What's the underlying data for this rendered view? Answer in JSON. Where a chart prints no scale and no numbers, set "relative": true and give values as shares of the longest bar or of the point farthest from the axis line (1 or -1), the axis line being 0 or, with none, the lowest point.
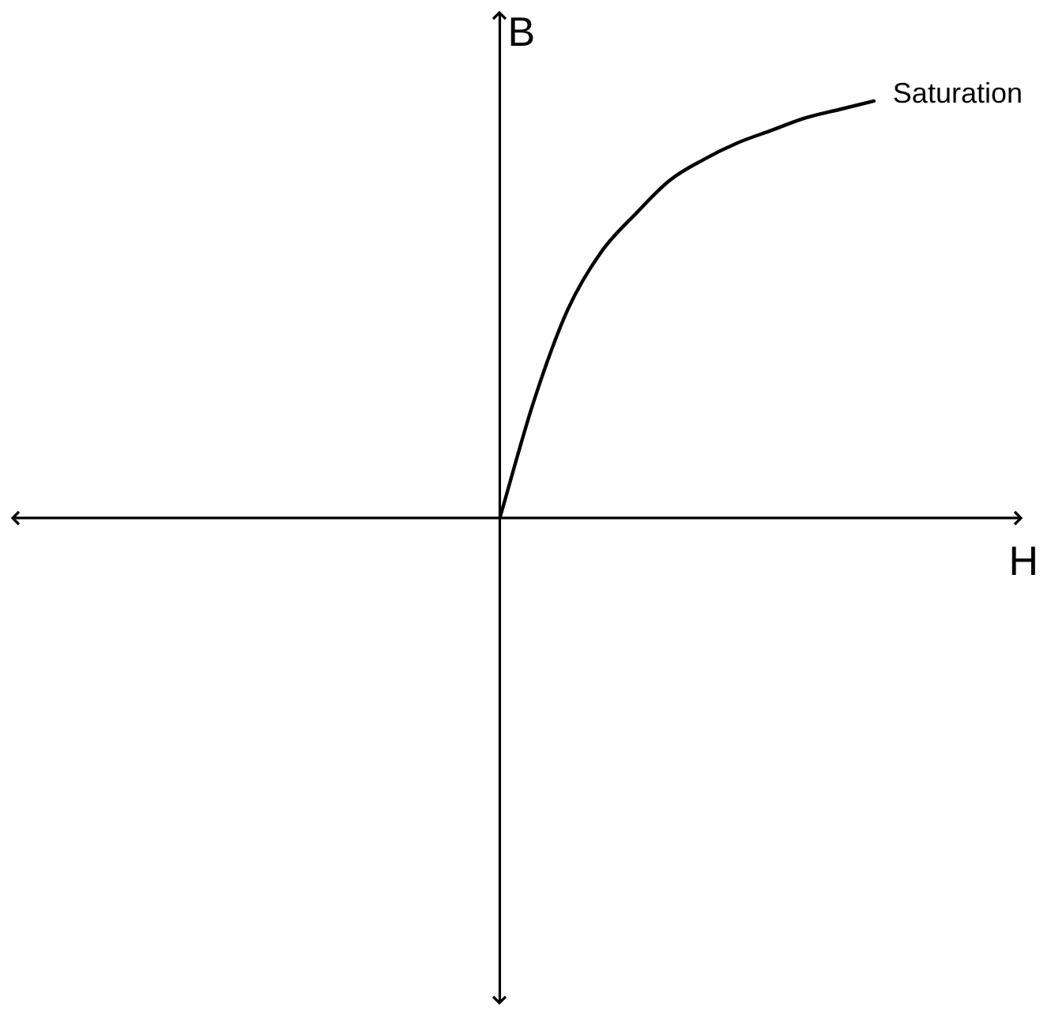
{
  "chart_data": {
    "type": "line",
    "relative": true,
    "xlabel": "H",
    "ylabel": "B",
    "color": "#000000",
    "marker": "none",
    "categories": [
      null,
      null,
      null,
      null,
      null,
      null,
      null,
      null,
      null,
      null,
      null,
      null,
      null,
      null,
      null,
      null,
      null,
      null,
      null,
      null,
      null,
      null,
      null,
      null,
      null,
      null,
      null,
      null,
      null,
      null
    ],
    "values": [
      null,
      null,
      null,
      null,
      null,
      null,
      null,
      null,
      null,
      null,
      null,
      null,
      null,
      null,
      0,
      0.28,
      0.5,
      0.64,
      0.73,
      0.81,
      0.86,
      0.9,
      0.93,
      0.96,
      0.98,
      1,
      null,
      null,
      null,
      null
    ],
    "annotations": [
      "Saturation"
    ]
  }
}
